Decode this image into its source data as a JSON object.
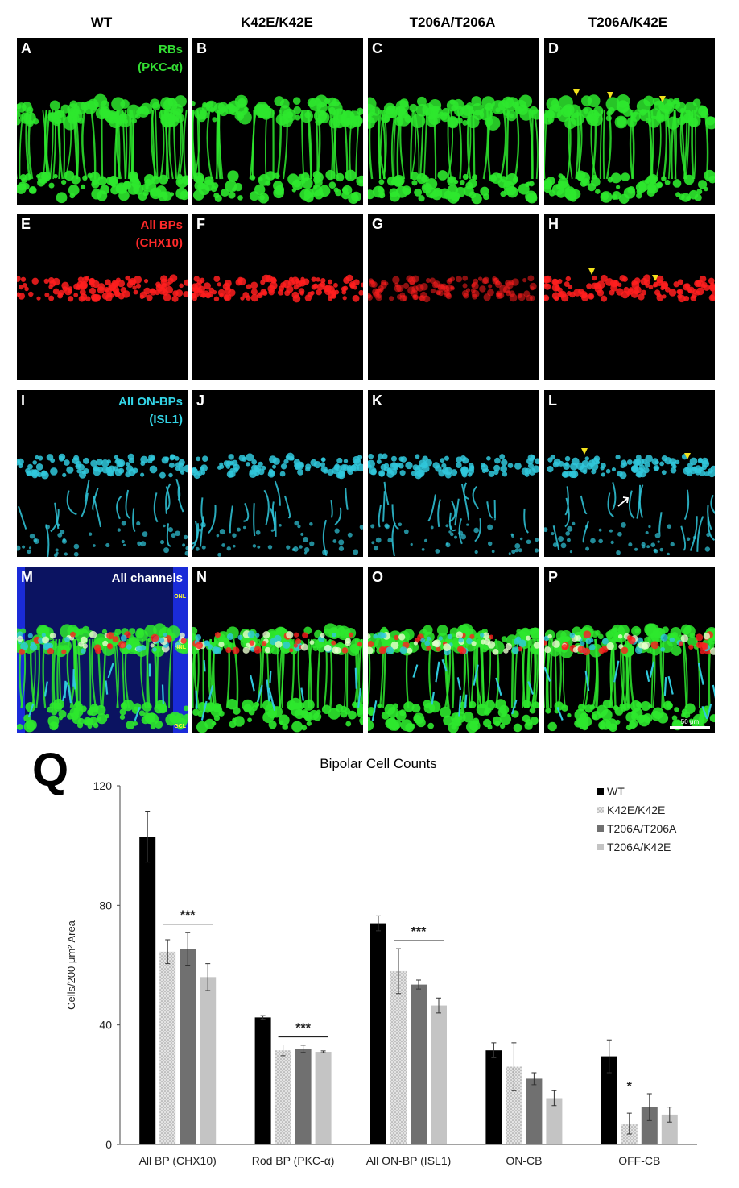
{
  "columns": [
    "WT",
    "K42E/K42E",
    "T206A/T206A",
    "T206A/K42E"
  ],
  "rows": [
    {
      "panels": [
        "A",
        "B",
        "C",
        "D"
      ],
      "title_lines": [
        "RBs",
        "(PKC-α)"
      ],
      "title_color": "#33dd33",
      "stain": "rbs"
    },
    {
      "panels": [
        "E",
        "F",
        "G",
        "H"
      ],
      "title_lines": [
        "All BPs",
        "(CHX10)"
      ],
      "title_color": "#ff2a2a",
      "stain": "chx"
    },
    {
      "panels": [
        "I",
        "J",
        "K",
        "L"
      ],
      "title_lines": [
        "All ON-BPs",
        "(ISL1)"
      ],
      "title_color": "#33d4e6",
      "stain": "isl"
    },
    {
      "panels": [
        "M",
        "N",
        "O",
        "P"
      ],
      "title_lines": [
        "All channels"
      ],
      "title_color": "#ffffff",
      "stain": "all"
    }
  ],
  "layer_labels": [
    "ONL",
    "INL",
    "GCL"
  ],
  "scale_bar": "50 μm",
  "colors": {
    "green": "#2ee82e",
    "red": "#ff1e1e",
    "cyan": "#30c8dc",
    "blue": "#1a2bd8",
    "arrowhead": "#f2e21c"
  },
  "figure_label": "Q",
  "chart_data": {
    "type": "bar",
    "title": "Bipolar Cell Counts",
    "ylabel": "Cells/200 μm² Area",
    "xlabel": "",
    "ylim": [
      0,
      120
    ],
    "yticks": [
      0,
      40,
      80,
      120
    ],
    "categories": [
      "All BP (CHX10)",
      "Rod BP (PKC-α)",
      "All ON-BP (ISL1)",
      "ON-CB",
      "OFF-CB"
    ],
    "series": [
      {
        "name": "WT",
        "color": "#000000",
        "pattern": "solid",
        "values": [
          103,
          42.5,
          74,
          31.5,
          29.5
        ],
        "errors": [
          8.5,
          0.6,
          2.5,
          2.5,
          5.5
        ]
      },
      {
        "name": "K42E/K42E",
        "color": "#d0d0d0",
        "pattern": "dots",
        "values": [
          64.5,
          31.5,
          58,
          26,
          7
        ],
        "errors": [
          4,
          1.8,
          7.5,
          8,
          3.5
        ]
      },
      {
        "name": "T206A/T206A",
        "color": "#707070",
        "pattern": "solid",
        "values": [
          65.5,
          32,
          53.5,
          22,
          12.5
        ],
        "errors": [
          5.5,
          1.2,
          1.5,
          2,
          4.5
        ]
      },
      {
        "name": "T206A/K42E",
        "color": "#c4c4c4",
        "pattern": "solid",
        "values": [
          56,
          31,
          46.5,
          15.5,
          10
        ],
        "errors": [
          4.5,
          0.3,
          2.5,
          2.5,
          2.5
        ]
      }
    ],
    "significance": [
      {
        "category": "All BP (CHX10)",
        "label": "***"
      },
      {
        "category": "Rod BP (PKC-α)",
        "label": "***"
      },
      {
        "category": "All ON-BP (ISL1)",
        "label": "***"
      },
      {
        "category": "OFF-CB",
        "label": "*"
      }
    ],
    "legend_position": "top-right"
  }
}
